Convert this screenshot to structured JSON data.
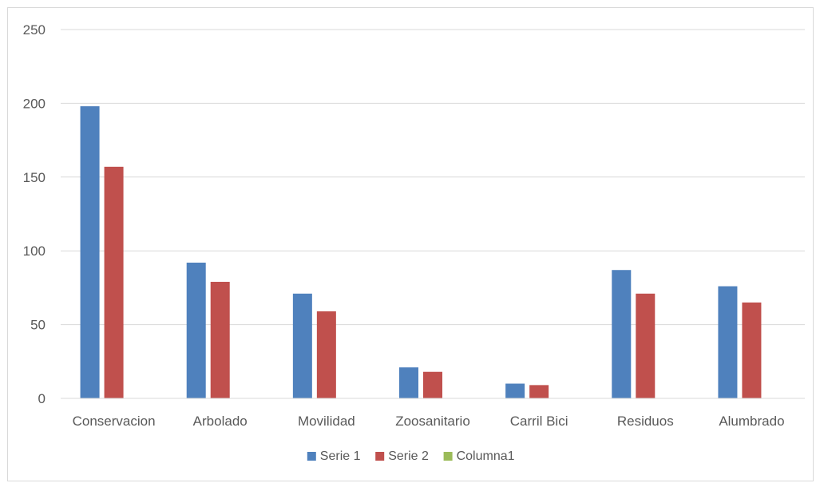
{
  "chart_data": {
    "type": "bar",
    "title": "",
    "xlabel": "",
    "ylabel": "",
    "categories": [
      "Conservacion",
      "Arbolado",
      "Movilidad",
      "Zoosanitario",
      "Carril Bici",
      "Residuos",
      "Alumbrado"
    ],
    "series": [
      {
        "name": "Serie 1",
        "color": "#4f81bd",
        "values": [
          198,
          92,
          71,
          21,
          10,
          87,
          76
        ]
      },
      {
        "name": "Serie 2",
        "color": "#c0504d",
        "values": [
          157,
          79,
          59,
          18,
          9,
          71,
          65
        ]
      },
      {
        "name": "Columna1",
        "color": "#9bbb59",
        "values": [
          null,
          null,
          null,
          null,
          null,
          null,
          null
        ]
      }
    ],
    "ylim": [
      0,
      250
    ],
    "yticks": [
      0,
      50,
      100,
      150,
      200,
      250
    ],
    "grid": true,
    "legend_position": "bottom"
  }
}
